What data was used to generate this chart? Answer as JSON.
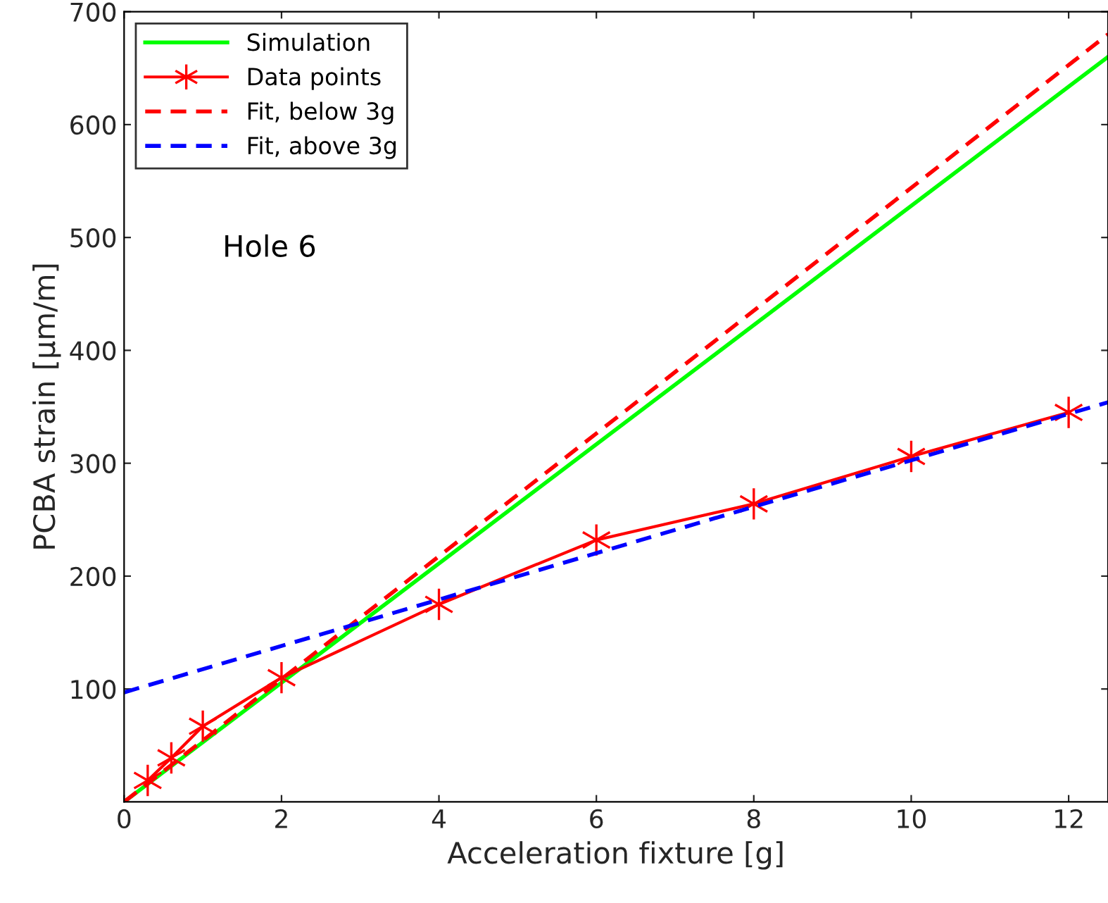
{
  "chart_data": {
    "type": "line",
    "xlabel": "Acceleration fixture [g]",
    "ylabel": "PCBA strain [μm/m]",
    "xlim": [
      0,
      12.5
    ],
    "ylim": [
      0,
      700
    ],
    "xticks": [
      0,
      2,
      4,
      6,
      8,
      10,
      12
    ],
    "yticks": [
      100,
      200,
      300,
      400,
      500,
      600,
      700
    ],
    "grid": false,
    "legend": "top left",
    "annotations": [
      "Hole 6"
    ],
    "series": [
      {
        "name": "Simulation",
        "color": "#00ff00",
        "x": [
          0,
          12.5
        ],
        "values": [
          0,
          660
        ],
        "marker": "none",
        "line_style": "solid"
      },
      {
        "name": "Data points",
        "color": "#ff0000",
        "x": [
          0.3,
          0.6,
          1,
          2,
          4,
          6,
          8,
          10,
          12
        ],
        "values": [
          19,
          39,
          67,
          110,
          175,
          232,
          264,
          306,
          345
        ],
        "marker": "cross",
        "line_style": "solid"
      },
      {
        "name": "Fit, below 3g",
        "color": "#ff0000",
        "x": [
          0,
          12.5
        ],
        "values": [
          0,
          680
        ],
        "marker": "none",
        "line_style": "dashed"
      },
      {
        "name": "Fit, above 3g",
        "color": "#0000ff",
        "x": [
          0,
          12.5
        ],
        "values": [
          97,
          354
        ],
        "marker": "none",
        "line_style": "dashed"
      }
    ]
  }
}
